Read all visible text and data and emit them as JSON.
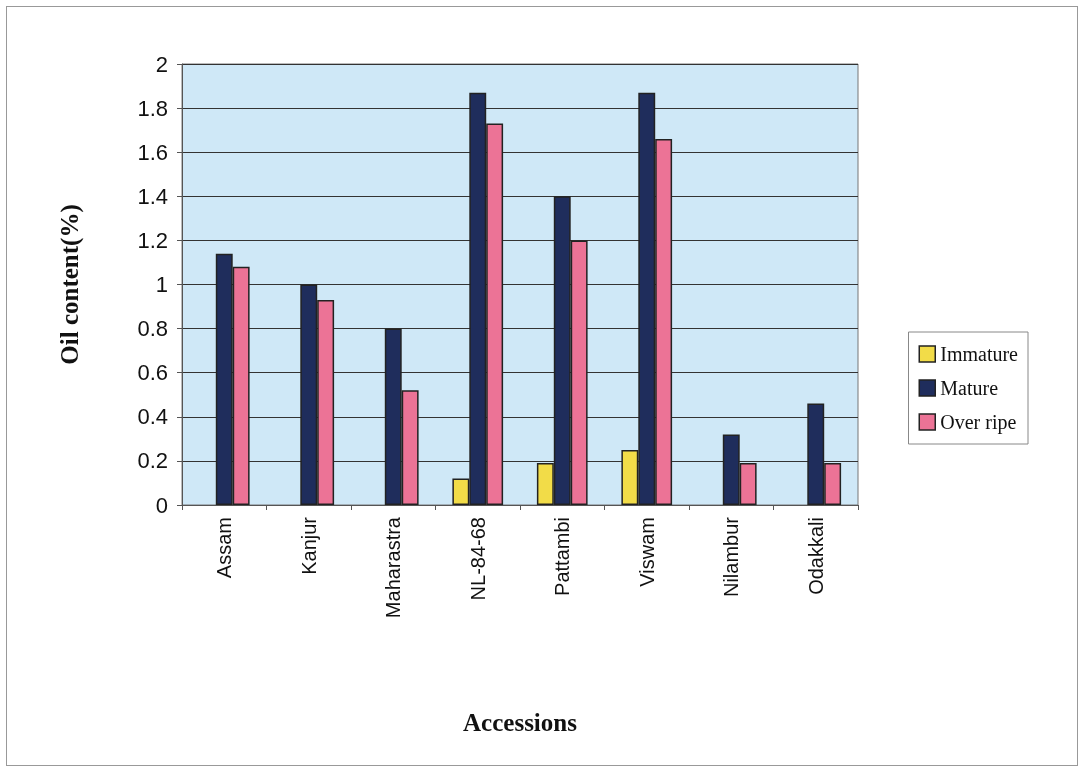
{
  "chart_data": {
    "type": "bar",
    "xlabel": "Accessions",
    "ylabel": "Oil content(%)",
    "categories": [
      "Assam",
      "Kanjur",
      "Maharastra",
      "NL-84-68",
      "Pattambi",
      "Viswam",
      "Nilambur",
      "Odakkali"
    ],
    "series": [
      {
        "name": "Immature",
        "color": "#f2dc48",
        "values": [
          null,
          null,
          null,
          0.12,
          0.19,
          0.25,
          null,
          null
        ]
      },
      {
        "name": "Mature",
        "color": "#1f2d5c",
        "values": [
          1.14,
          1.0,
          0.8,
          1.87,
          1.4,
          1.87,
          0.32,
          0.46
        ]
      },
      {
        "name": "Over ripe",
        "color": "#ec7396",
        "values": [
          1.08,
          0.93,
          0.52,
          1.73,
          1.2,
          1.66,
          0.19,
          0.19
        ]
      }
    ],
    "ylim": [
      0,
      2
    ],
    "yticks": [
      0,
      0.2,
      0.4,
      0.6,
      0.8,
      1,
      1.2,
      1.4,
      1.6,
      1.8,
      2
    ],
    "grid": "y",
    "legend": "right"
  }
}
